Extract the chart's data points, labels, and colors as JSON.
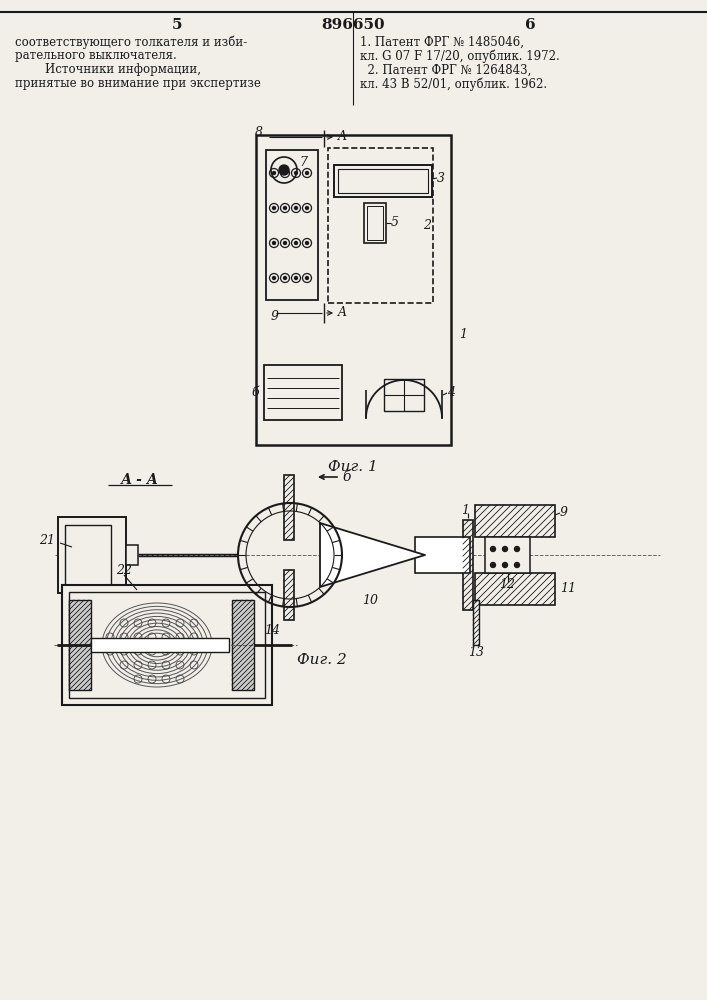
{
  "bg_color": "#f2efe9",
  "line_color": "#1a1a1a",
  "page_num_left": "5",
  "page_num_center": "896650",
  "page_num_right": "6",
  "text_left_col": [
    "соответствующего толкателя и изби-",
    "рательного выключателя.",
    "        Источники информации,",
    "принятые во внимание при экспертизе"
  ],
  "text_right_col": [
    "1. Патент ФРГ № 1485046,",
    "кл. G 07 F 17/20, опублик. 1972.",
    "  2. Патент ФРГ № 1264843,",
    "кл. 43 В 52/01, опублик. 1962."
  ],
  "fig1_label": "Фиг. 1",
  "fig2_label": "Фиг. 2",
  "section_label": "А - А"
}
